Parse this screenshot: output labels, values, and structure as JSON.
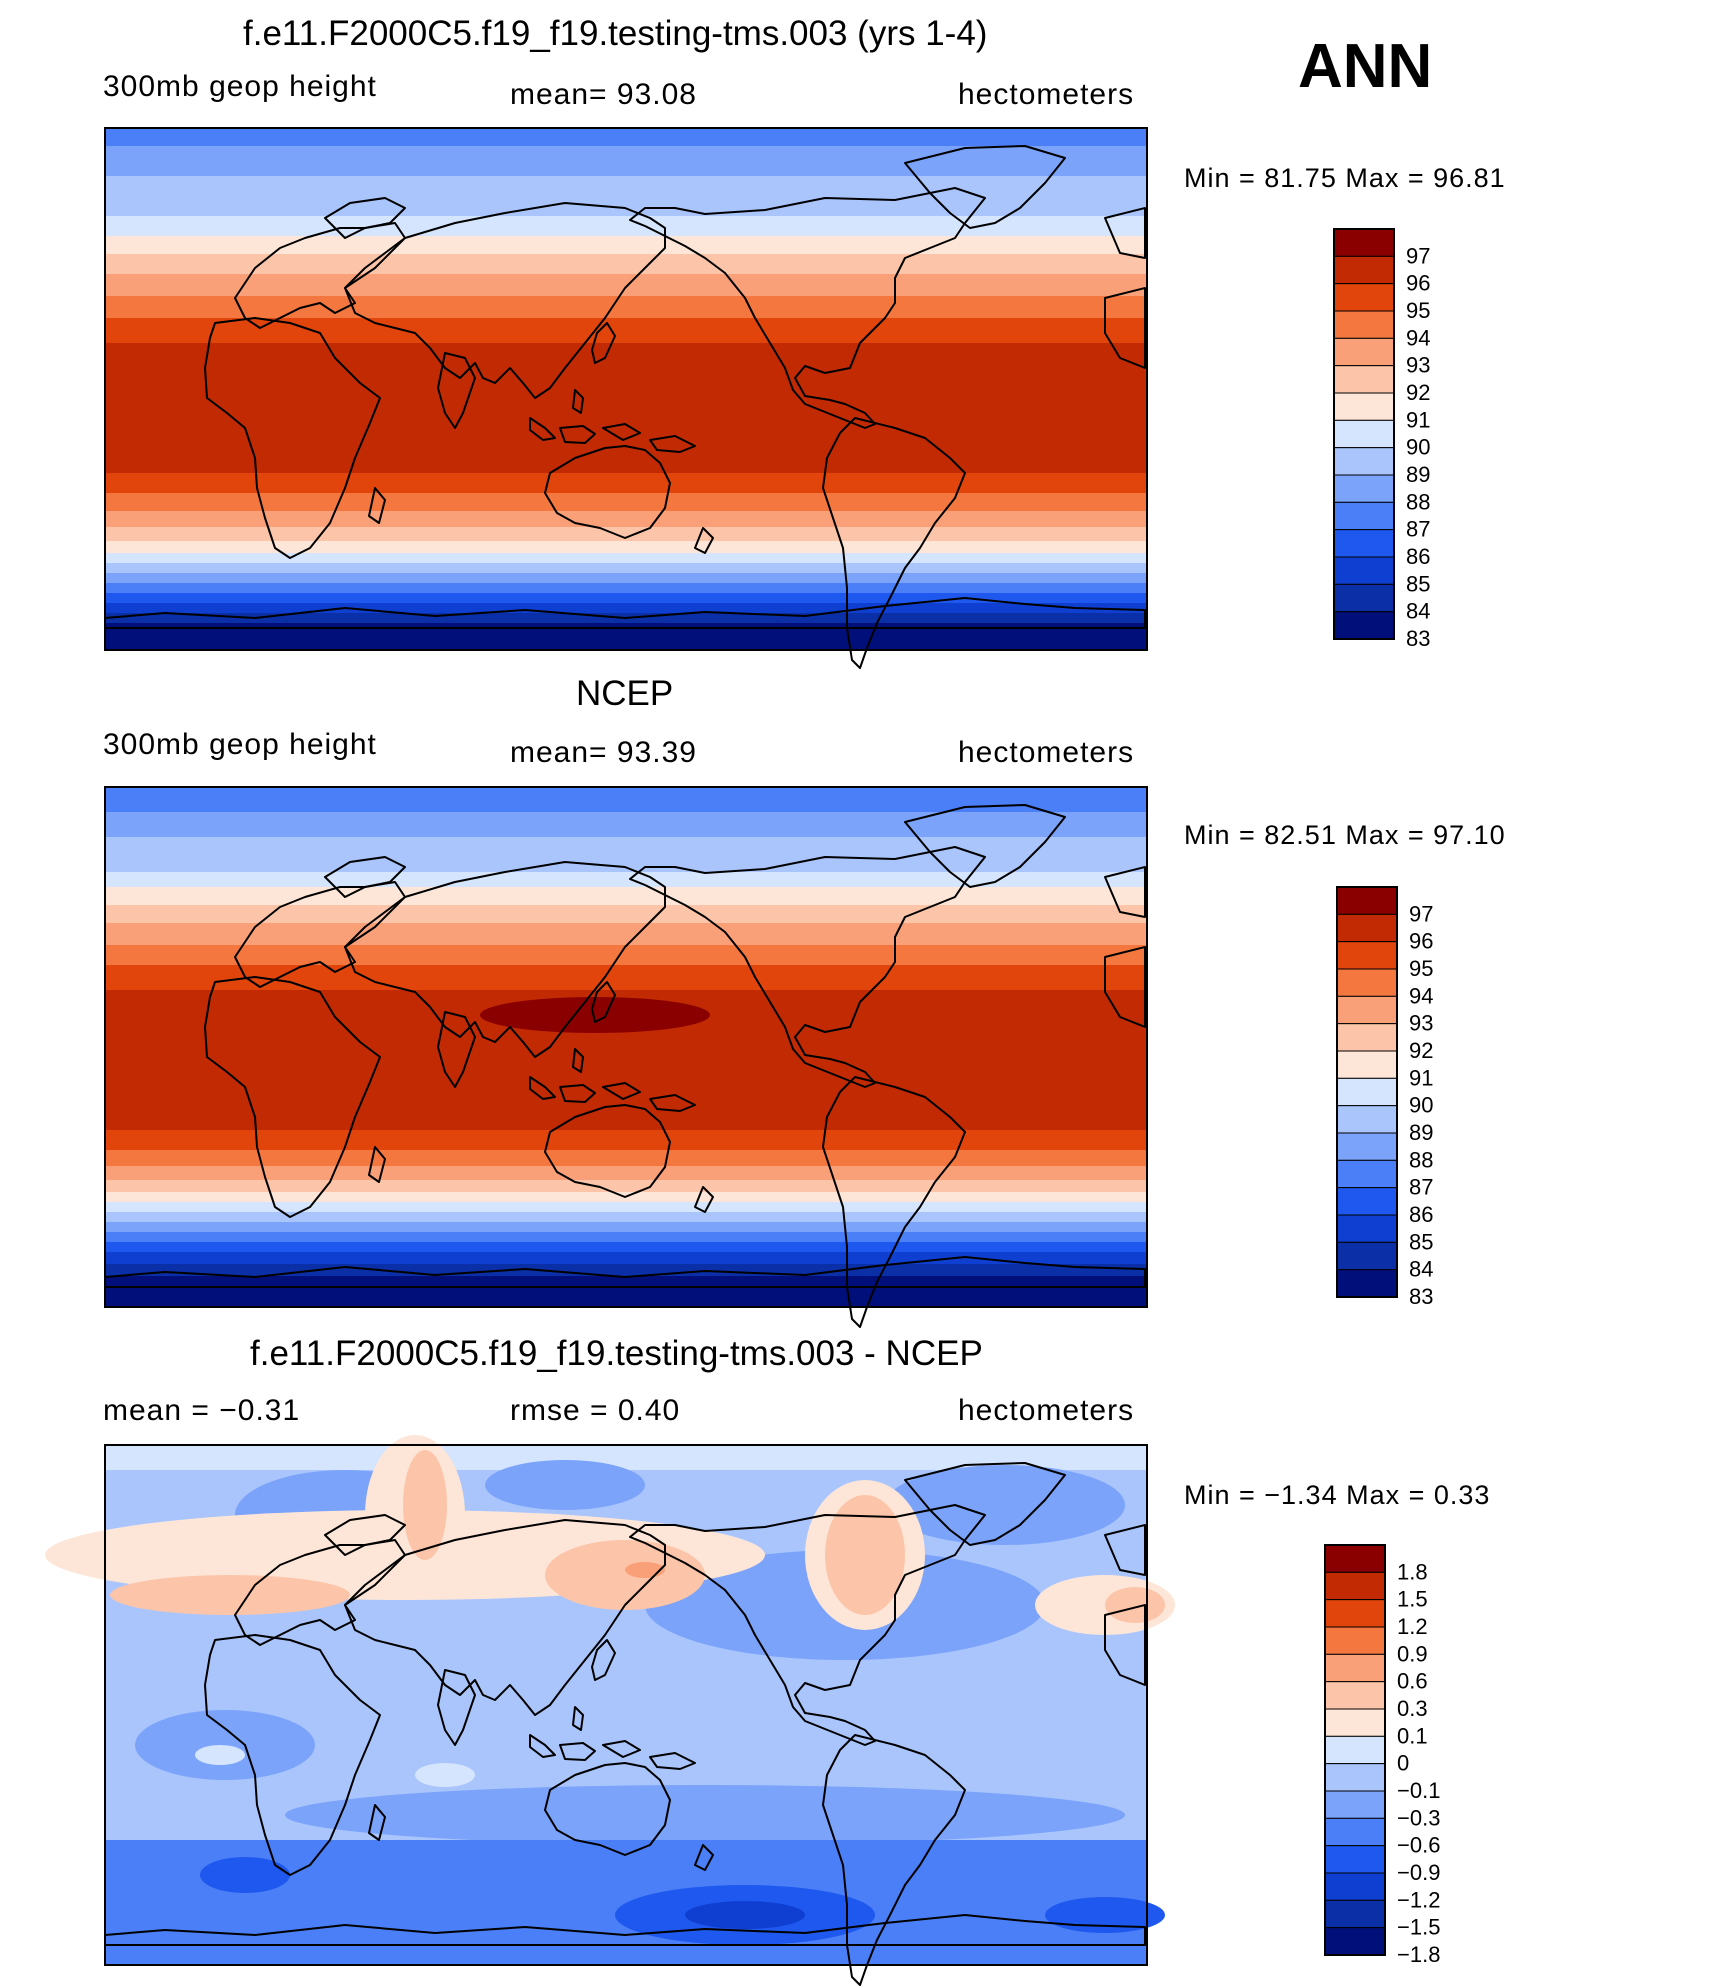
{
  "season": "ANN",
  "colors": {
    "abs_scale": [
      "#000f7a",
      "#0a2fa6",
      "#0f3fd1",
      "#1e58ee",
      "#4a7ff7",
      "#7ba3fa",
      "#a9c5fc",
      "#d4e5fd",
      "#fde6d8",
      "#fcc5a9",
      "#f9a078",
      "#f3773f",
      "#e1450c",
      "#c22a03",
      "#8a0000"
    ],
    "diff_scale": [
      "#000f7a",
      "#0a2fa6",
      "#0f3fd1",
      "#1e58ee",
      "#4a7ff7",
      "#7ba3fa",
      "#a9c5fc",
      "#d4e5fd",
      "#fde6d8",
      "#fcc5a9",
      "#f9a078",
      "#f3773f",
      "#e1450c",
      "#c22a03",
      "#8a0000"
    ]
  },
  "panels": [
    {
      "title": "f.e11.F2000C5.f19_f19.testing-tms.003 (yrs 1-4)",
      "left_text": "300mb  geop  height",
      "center_text": "mean=   93.08",
      "units": "hectometers",
      "min_max": "Min  =    81.75  Max  =    96.81",
      "legend_labels": [
        "97",
        "96",
        "95",
        "94",
        "93",
        "92",
        "91",
        "90",
        "89",
        "88",
        "87",
        "86",
        "85",
        "84",
        "83"
      ]
    },
    {
      "title": "NCEP",
      "left_text": "300mb  geop  height",
      "center_text": "mean=   93.39",
      "units": "hectometers",
      "min_max": "Min  =    82.51  Max  =    97.10",
      "legend_labels": [
        "97",
        "96",
        "95",
        "94",
        "93",
        "92",
        "91",
        "90",
        "89",
        "88",
        "87",
        "86",
        "85",
        "84",
        "83"
      ]
    },
    {
      "title": "f.e11.F2000C5.f19_f19.testing-tms.003 - NCEP",
      "left_text": "mean  =     −0.31",
      "center_text": "rmse  =      0.40",
      "units": "hectometers",
      "min_max": "Min  =    −1.34  Max  =      0.33",
      "legend_labels": [
        "1.8",
        "1.5",
        "1.2",
        "0.9",
        "0.6",
        "0.3",
        "0.1",
        "0",
        "−0.1",
        "−0.3",
        "−0.6",
        "−0.9",
        "−1.2",
        "−1.5",
        "−1.8"
      ]
    }
  ]
}
